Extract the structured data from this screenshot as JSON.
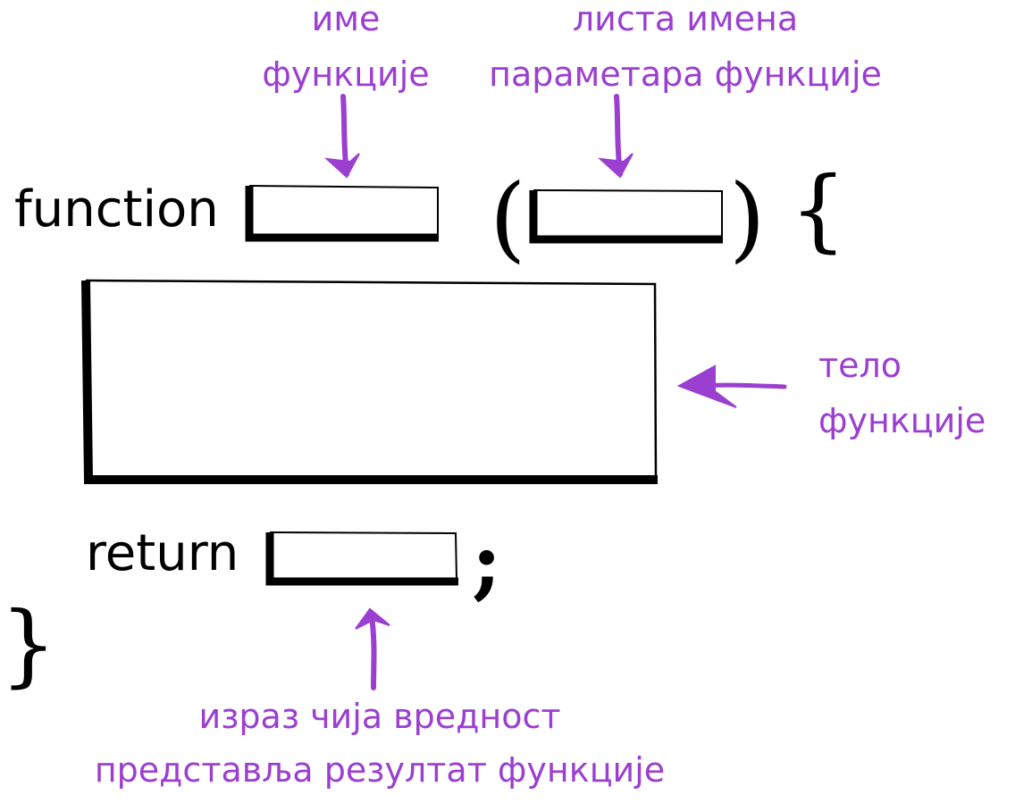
{
  "code": {
    "function_keyword": "function",
    "return_keyword": "return",
    "open_paren": "(",
    "close_paren": ")",
    "open_brace": "{",
    "close_brace": "}",
    "semicolon": ";"
  },
  "annotations": {
    "function_name": {
      "line1": "име",
      "line2": "функције"
    },
    "parameter_list": {
      "line1": "листа имена",
      "line2": "параметара функције"
    },
    "function_body": {
      "line1": "тело",
      "line2": "функције"
    },
    "return_expression": {
      "line1": "израз чија вредност",
      "line2": "представља резултат функције"
    }
  },
  "colors": {
    "annotation": "#9b3fd0",
    "code": "#000000"
  }
}
